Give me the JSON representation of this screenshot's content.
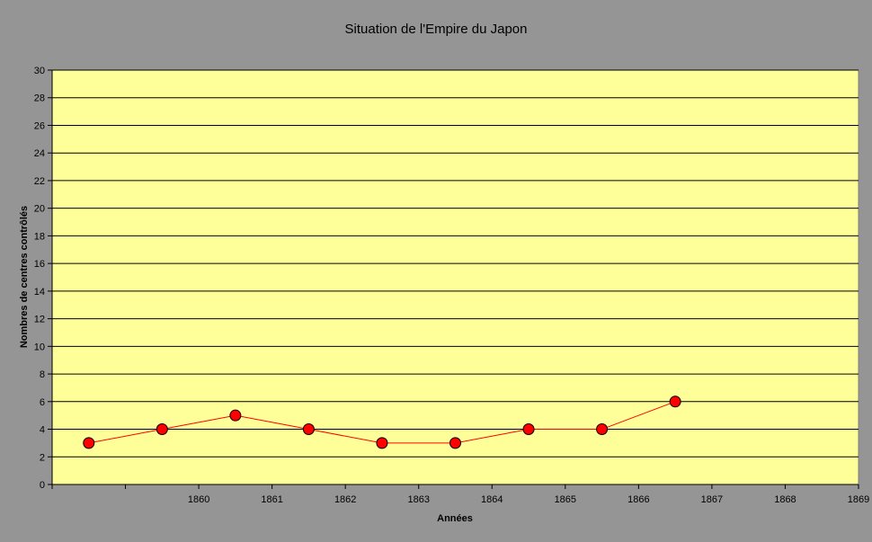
{
  "chart_data": {
    "type": "line",
    "title": "Situation de l'Empire du Japon",
    "xlabel": "Années",
    "ylabel": "Nombres de centres contrôlés",
    "categories": [
      "",
      "1860",
      "1861",
      "1862",
      "1863",
      "1864",
      "1865",
      "1866",
      "1867",
      "1868",
      "1869"
    ],
    "series": [
      {
        "values": [
          3,
          4,
          5,
          4,
          3,
          3,
          4,
          4,
          6,
          null,
          null
        ]
      }
    ],
    "ylim": [
      0,
      30
    ],
    "yticks": [
      0,
      2,
      4,
      6,
      8,
      10,
      12,
      14,
      16,
      18,
      20,
      22,
      24,
      26,
      28,
      30
    ],
    "grid": true,
    "colors": {
      "chart_background": "#959595",
      "plot_background": "#FFFF99",
      "line": "#FF0000",
      "marker": "#FF0000",
      "gridline": "#000000"
    }
  }
}
